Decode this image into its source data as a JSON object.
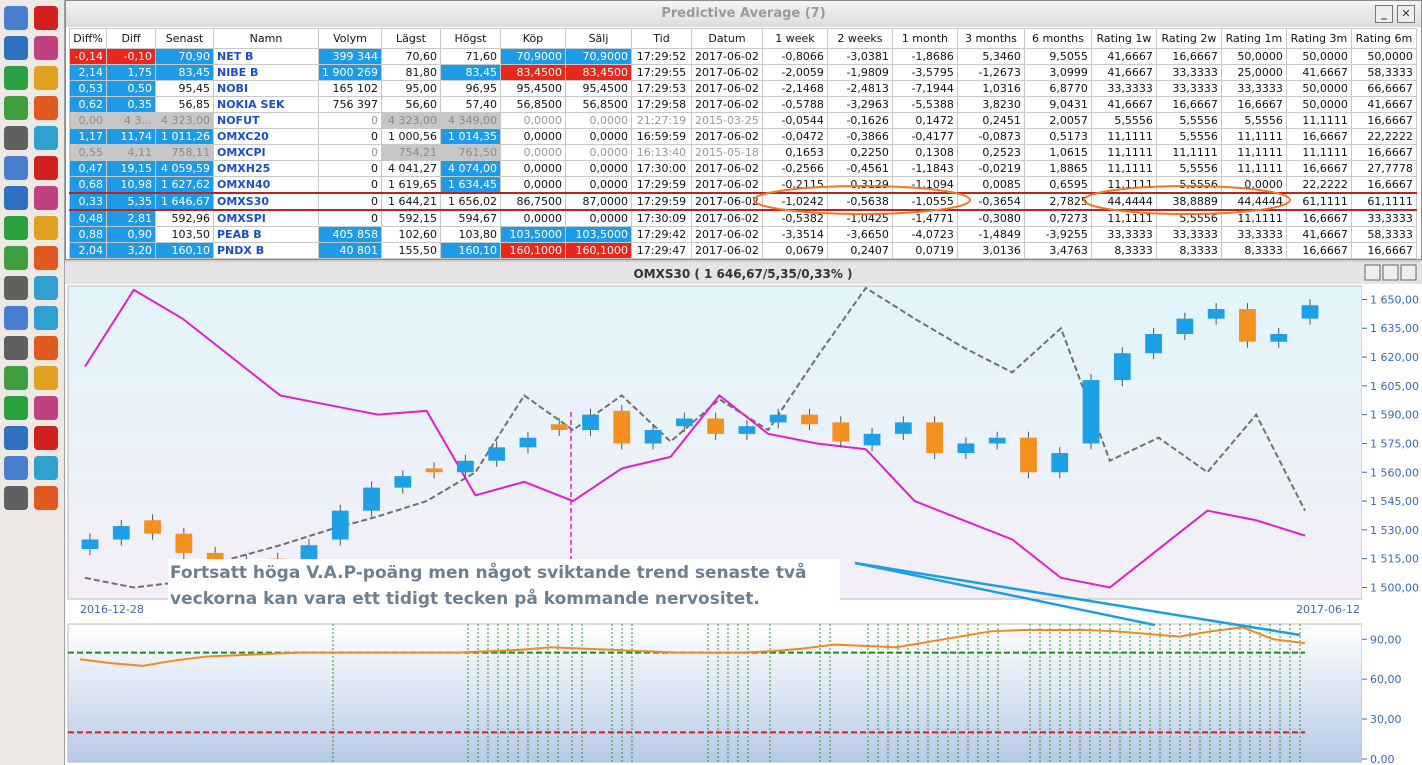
{
  "window": {
    "title": "Predictive Average (7)"
  },
  "table": {
    "columns": [
      "Diff%",
      "Diff",
      "Senast",
      "Namn",
      "Volym",
      "Lägst",
      "Högst",
      "Köp",
      "Sälj",
      "Tid",
      "Datum",
      "1 week",
      "2 weeks",
      "1 month",
      "3 months",
      "6 months",
      "Rating 1w",
      "Rating 2w",
      "Rating 1m",
      "Rating 3m",
      "Rating 6m"
    ],
    "rows": [
      [
        "-0,14",
        "-0,10",
        "70,90",
        "NET B",
        "399 344",
        "70,60",
        "71,60",
        "70,9000",
        "70,9000",
        "17:29:52",
        "2017-06-02",
        "-0,8066",
        "-3,0381",
        "-1,8686",
        "5,3460",
        "9,5055",
        "41,6667",
        "16,6667",
        "50,0000",
        "50,0000",
        "50,0000"
      ],
      [
        "2,14",
        "1,75",
        "83,45",
        "NIBE B",
        "1 900 269",
        "81,80",
        "83,45",
        "83,4500",
        "83,4500",
        "17:29:55",
        "2017-06-02",
        "-2,0059",
        "-1,9809",
        "-3,5795",
        "-1,2673",
        "3,0999",
        "41,6667",
        "33,3333",
        "25,0000",
        "41,6667",
        "58,3333"
      ],
      [
        "0,53",
        "0,50",
        "95,45",
        "NOBI",
        "165 102",
        "95,00",
        "96,95",
        "95,4500",
        "95,4500",
        "17:29:53",
        "2017-06-02",
        "-2,1468",
        "-2,4813",
        "-7,1944",
        "1,0316",
        "6,8770",
        "33,3333",
        "33,3333",
        "33,3333",
        "50,0000",
        "66,6667"
      ],
      [
        "0,62",
        "0,35",
        "56,85",
        "NOKIA SEK",
        "756 397",
        "56,60",
        "57,40",
        "56,8500",
        "56,8500",
        "17:29:58",
        "2017-06-02",
        "-0,5788",
        "-3,2963",
        "-5,5388",
        "3,8230",
        "9,0431",
        "41,6667",
        "16,6667",
        "16,6667",
        "50,0000",
        "41,6667"
      ],
      [
        "0,00",
        "4 3...",
        "4 323,00",
        "NOFUT",
        "0",
        "4 323,00",
        "4 349,00",
        "0,0000",
        "0,0000",
        "21:27:19",
        "2015-03-25",
        "-0,0544",
        "-0,1626",
        "0,1472",
        "0,2451",
        "2,0057",
        "5,5556",
        "5,5556",
        "5,5556",
        "11,1111",
        "16,6667"
      ],
      [
        "1,17",
        "11,74",
        "1 011,26",
        "OMXC20",
        "0",
        "1 000,56",
        "1 014,35",
        "0,0000",
        "0,0000",
        "16:59:59",
        "2017-06-02",
        "-0,0472",
        "-0,3866",
        "-0,4177",
        "-0,0873",
        "0,5173",
        "11,1111",
        "5,5556",
        "11,1111",
        "16,6667",
        "22,2222"
      ],
      [
        "0,55",
        "4,11",
        "758,11",
        "OMXCPI",
        "0",
        "754,21",
        "761,50",
        "0,0000",
        "0,0000",
        "16:13:40",
        "2015-05-18",
        "0,1653",
        "0,2250",
        "0,1308",
        "0,2523",
        "1,0615",
        "11,1111",
        "11,1111",
        "11,1111",
        "11,1111",
        "16,6667"
      ],
      [
        "0,47",
        "19,15",
        "4 059,59",
        "OMXH25",
        "0",
        "4 041,27",
        "4 074,00",
        "0,0000",
        "0,0000",
        "17:30:00",
        "2017-06-02",
        "-0,2566",
        "-0,4561",
        "-1,1843",
        "-0,0219",
        "1,8865",
        "11,1111",
        "5,5556",
        "11,1111",
        "16,6667",
        "27,7778"
      ],
      [
        "0,68",
        "10,98",
        "1 627,62",
        "OMXN40",
        "0",
        "1 619,65",
        "1 634,45",
        "0,0000",
        "0,0000",
        "17:29:59",
        "2017-06-02",
        "-0,2115",
        "0,3129",
        "-1,1094",
        "0,0085",
        "0,6595",
        "11,1111",
        "5,5556",
        "0,0000",
        "22,2222",
        "16,6667"
      ],
      [
        "0,33",
        "5,35",
        "1 646,67",
        "OMXS30",
        "0",
        "1 644,21",
        "1 656,02",
        "86,7500",
        "87,0000",
        "17:29:59",
        "2017-06-02",
        "-1,0242",
        "-0,5638",
        "-1,0555",
        "-0,3654",
        "2,7825",
        "44,4444",
        "38,8889",
        "44,4444",
        "61,1111",
        "61,1111"
      ],
      [
        "0,48",
        "2,81",
        "592,96",
        "OMXSPI",
        "0",
        "592,15",
        "594,67",
        "0,0000",
        "0,0000",
        "17:30:09",
        "2017-06-02",
        "-0,5382",
        "-1,0425",
        "-1,4771",
        "-0,3080",
        "0,7273",
        "11,1111",
        "5,5556",
        "11,1111",
        "16,6667",
        "33,3333"
      ],
      [
        "0,88",
        "0,90",
        "103,50",
        "PEAB B",
        "405 858",
        "102,60",
        "103,80",
        "103,5000",
        "103,5000",
        "17:29:42",
        "2017-06-02",
        "-3,3514",
        "-3,6650",
        "-4,0723",
        "-1,4849",
        "-3,9255",
        "33,3333",
        "33,3333",
        "33,3333",
        "41,6667",
        "58,3333"
      ],
      [
        "2,04",
        "3,20",
        "160,10",
        "PNDX B",
        "40 801",
        "155,50",
        "160,10",
        "160,1000",
        "160,1000",
        "17:29:47",
        "2017-06-02",
        "0,0679",
        "0,2407",
        "0,0719",
        "3,0136",
        "3,4763",
        "8,3333",
        "8,3333",
        "8,3333",
        "16,6667",
        "16,6667"
      ]
    ]
  },
  "chart": {
    "type": "candlestick",
    "title": "OMXS30 ( 1 646,67/5,35/0,33% )",
    "annotation": "Fortsatt höga V.A.P-poäng men något sviktande trend senaste två veckorna kan vara ett tidigt tecken på kommande nervositet.",
    "x_start_label": "2016-12-28",
    "x_end_label": "2017-06-12",
    "ylim": [
      1494,
      1657
    ],
    "yticks": [
      {
        "value": 1500,
        "label": "1 500,00"
      },
      {
        "value": 1515,
        "label": "1 515,00"
      },
      {
        "value": 1530,
        "label": "1 530,00"
      },
      {
        "value": 1545,
        "label": "1 545,00"
      },
      {
        "value": 1560,
        "label": "1 560,00"
      },
      {
        "value": 1575,
        "label": "1 575,00"
      },
      {
        "value": 1590,
        "label": "1 590,00"
      },
      {
        "value": 1605,
        "label": "1 605,00"
      },
      {
        "value": 1620,
        "label": "1 620,00"
      },
      {
        "value": 1635,
        "label": "1 635,00"
      },
      {
        "value": 1650,
        "label": "1 650,00"
      }
    ],
    "up_color": "#1ea0e6",
    "down_color": "#f39020",
    "open": [
      1520,
      1525,
      1535,
      1528,
      1518,
      1512,
      1515,
      1512,
      1525,
      1540,
      1552,
      1562,
      1560,
      1566,
      1573,
      1585,
      1582,
      1592,
      1575,
      1584,
      1588,
      1580,
      1586,
      1590,
      1586,
      1574,
      1580,
      1586,
      1570,
      1575,
      1578,
      1560,
      1575,
      1608,
      1622,
      1632,
      1640,
      1645,
      1628,
      1640
    ],
    "close": [
      1525,
      1532,
      1528,
      1518,
      1512,
      1514,
      1510,
      1522,
      1540,
      1552,
      1558,
      1560,
      1566,
      1573,
      1578,
      1582,
      1590,
      1575,
      1582,
      1588,
      1580,
      1584,
      1590,
      1585,
      1576,
      1580,
      1586,
      1570,
      1575,
      1578,
      1560,
      1570,
      1608,
      1622,
      1632,
      1640,
      1645,
      1628,
      1632,
      1647
    ],
    "series": [
      {
        "color": "#707070",
        "values": [
          1505,
          1500,
          1503,
          1515,
          1522,
          1530,
          1537,
          1545,
          1560,
          1600,
          1582,
          1600,
          1576,
          1598,
          1582,
          1620,
          1656,
          1640,
          1625,
          1612,
          1635,
          1566,
          1578,
          1560,
          1590,
          1540
        ]
      },
      {
        "color": "#e020c8",
        "values": [
          1615,
          1655,
          1640,
          1620,
          1600,
          1595,
          1590,
          1592,
          1548,
          1555,
          1545,
          1562,
          1568,
          1600,
          1580,
          1575,
          1572,
          1545,
          1535,
          1525,
          1505,
          1500,
          1520,
          1540,
          1535,
          1527
        ]
      }
    ]
  },
  "indicator": {
    "ylim": [
      -2.3,
      101.5
    ],
    "yticks": [
      {
        "value": 0,
        "label": "0,00"
      },
      {
        "value": 30,
        "label": "30,00"
      },
      {
        "value": 60,
        "label": "60,00"
      },
      {
        "value": 90,
        "label": "90,00"
      }
    ],
    "color": "#f08a20",
    "values": [
      75,
      72,
      70,
      74,
      77,
      78,
      79,
      80,
      80,
      80,
      80,
      80,
      80,
      81,
      82,
      84,
      83,
      82,
      81,
      80,
      80,
      80,
      81,
      83,
      86,
      85,
      84,
      88,
      92,
      96,
      97,
      97,
      97,
      96,
      94,
      92,
      96,
      99,
      90,
      87
    ],
    "levels": [
      {
        "value": 80,
        "color": "#208a20"
      },
      {
        "value": 20,
        "color": "#d02020"
      }
    ]
  }
}
